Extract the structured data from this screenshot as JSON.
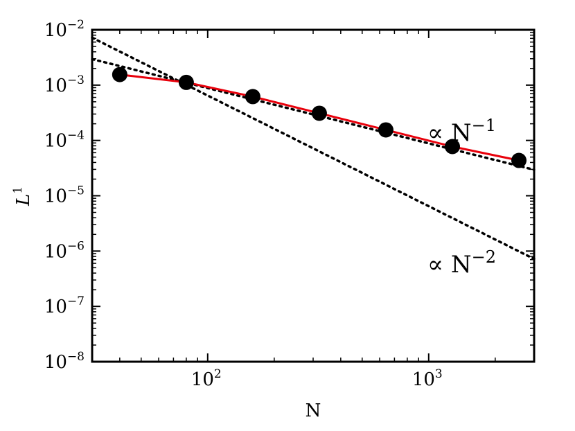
{
  "chart_data": {
    "type": "line",
    "title": "",
    "xlabel": "N",
    "ylabel": "L",
    "ylabel_superscript": "1",
    "xscale": "log",
    "yscale": "log",
    "xlim": [
      30,
      3000
    ],
    "ylim": [
      1e-08,
      0.01
    ],
    "x_ticks": [
      {
        "base": "10",
        "exp": "2",
        "value": 100
      },
      {
        "base": "10",
        "exp": "3",
        "value": 1000
      }
    ],
    "y_ticks": [
      {
        "base": "10",
        "exp": "−8",
        "value": 1e-08
      },
      {
        "base": "10",
        "exp": "−7",
        "value": 1e-07
      },
      {
        "base": "10",
        "exp": "−6",
        "value": 1e-06
      },
      {
        "base": "10",
        "exp": "−5",
        "value": 1e-05
      },
      {
        "base": "10",
        "exp": "−4",
        "value": 0.0001
      },
      {
        "base": "10",
        "exp": "−3",
        "value": 0.001
      },
      {
        "base": "10",
        "exp": "−2",
        "value": 0.01
      }
    ],
    "series": [
      {
        "style": "solid-line-with-markers",
        "line_color": "#e8000b",
        "marker_color": "#000000",
        "x": [
          40,
          80,
          160,
          320,
          640,
          1280,
          2560
        ],
        "y": [
          0.00155,
          0.00112,
          0.00062,
          0.00031,
          0.000155,
          7.75e-05,
          4.35e-05
        ]
      }
    ],
    "reference_lines": [
      {
        "style": "dotted",
        "color": "#000000",
        "x": [
          30,
          3000
        ],
        "y": [
          0.00295,
          2.95e-05
        ]
      },
      {
        "style": "dotted",
        "color": "#000000",
        "x": [
          30,
          3000
        ],
        "y": [
          0.0072,
          7.2e-07
        ]
      }
    ],
    "annotations": [
      {
        "base": "∝ N",
        "exp": "−1"
      },
      {
        "base": "∝ N",
        "exp": "−2"
      }
    ],
    "grid": false,
    "legend": "none"
  }
}
